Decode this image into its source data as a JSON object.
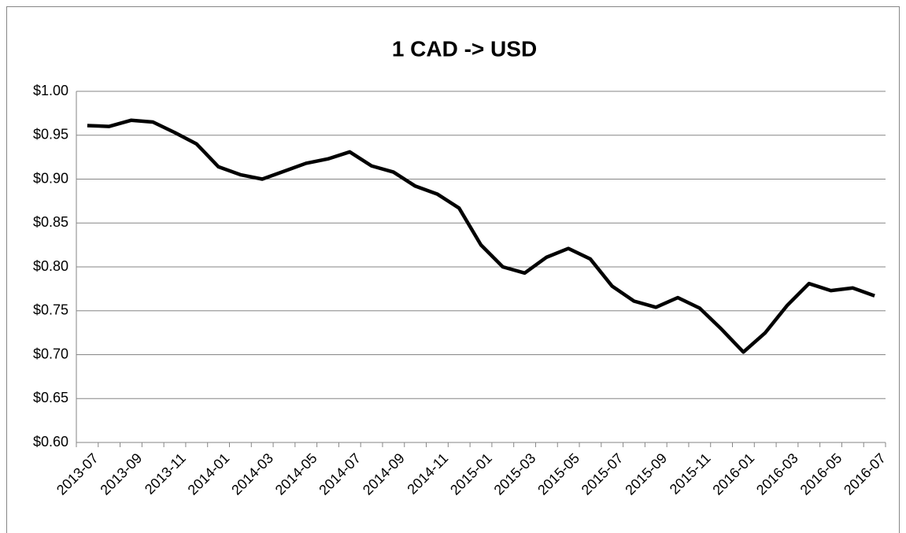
{
  "chart_data": {
    "type": "line",
    "title": "1 CAD -> USD",
    "categories": [
      "2013-07",
      null,
      "2013-09",
      null,
      "2013-11",
      null,
      "2014-01",
      null,
      "2014-03",
      null,
      "2014-05",
      null,
      "2014-07",
      null,
      "2014-09",
      null,
      "2014-11",
      null,
      "2015-01",
      null,
      "2015-03",
      null,
      "2015-05",
      null,
      "2015-07",
      null,
      "2015-09",
      null,
      "2015-11",
      null,
      "2016-01",
      null,
      "2016-03",
      null,
      "2016-05",
      null,
      "2016-07"
    ],
    "series": [
      {
        "color": "#000000",
        "values": [
          0.961,
          0.96,
          0.967,
          0.965,
          0.953,
          0.94,
          0.914,
          0.905,
          0.9,
          0.909,
          0.918,
          0.923,
          0.931,
          0.915,
          0.908,
          0.892,
          0.883,
          0.867,
          0.825,
          0.8,
          0.793,
          0.811,
          0.821,
          0.809,
          0.778,
          0.761,
          0.754,
          0.765,
          0.753,
          0.729,
          0.703,
          0.725,
          0.756,
          0.781,
          0.773,
          0.776,
          0.767
        ]
      }
    ],
    "ylim": [
      0.6,
      1.0
    ],
    "yticks": [
      {
        "value": 0.6,
        "label": "$0.60"
      },
      {
        "value": 0.65,
        "label": "$0.65"
      },
      {
        "value": 0.7,
        "label": "$0.70"
      },
      {
        "value": 0.75,
        "label": "$0.75"
      },
      {
        "value": 0.8,
        "label": "$0.80"
      },
      {
        "value": 0.85,
        "label": "$0.85"
      },
      {
        "value": 0.9,
        "label": "$0.90"
      },
      {
        "value": 0.95,
        "label": "$0.95"
      },
      {
        "value": 1.0,
        "label": "$1.00"
      }
    ],
    "grid": true
  }
}
